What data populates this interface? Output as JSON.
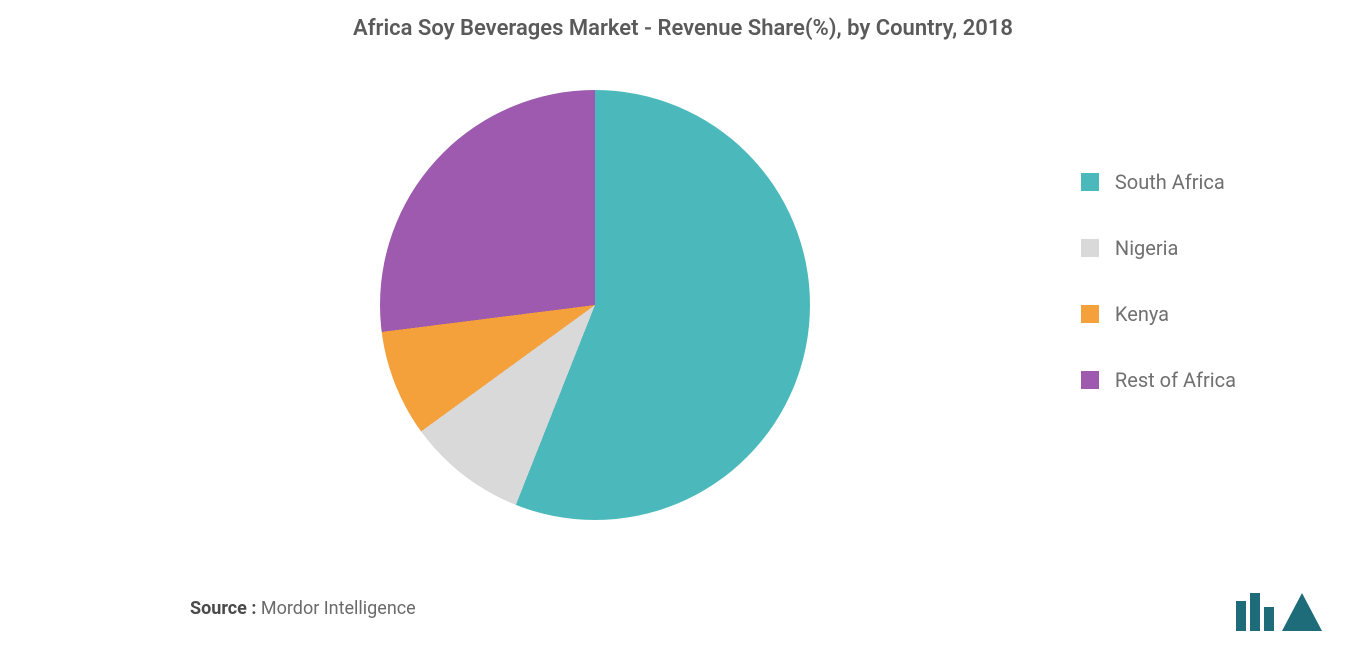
{
  "title": "Africa Soy Beverages Market - Revenue Share(%), by Country, 2018",
  "source_label": "Source :",
  "source_value": "Mordor Intelligence",
  "chart": {
    "type": "pie",
    "background_color": "#ffffff",
    "slices": [
      {
        "label": "South Africa",
        "value": 56,
        "color": "#4bb9bb"
      },
      {
        "label": "Nigeria",
        "value": 9,
        "color": "#d9d9d9"
      },
      {
        "label": "Kenya",
        "value": 8,
        "color": "#f4a03b"
      },
      {
        "label": "Rest of Africa",
        "value": 27,
        "color": "#9d5aae"
      }
    ],
    "legend_fontsize": 20,
    "title_fontsize": 22,
    "title_color": "#5a5a5a",
    "legend_text_color": "#707070"
  },
  "logo": {
    "bar_color": "#1e6b7a",
    "triangle_color": "#1e6b7a"
  }
}
